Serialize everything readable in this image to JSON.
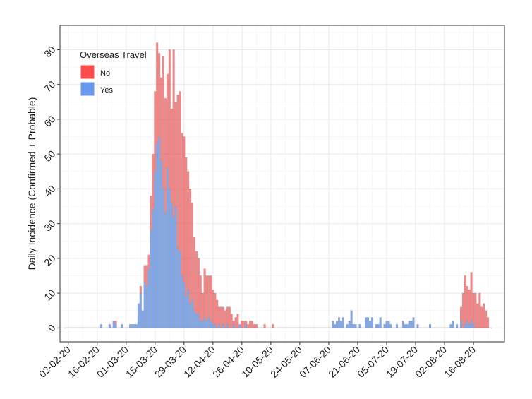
{
  "chart_data": {
    "type": "bar",
    "stacked": true,
    "title": "",
    "xlabel": "",
    "ylabel": "Daily Incidence (Confirmed + Probable)",
    "ylim": [
      -4,
      87
    ],
    "y_ticks": [
      0,
      10,
      20,
      30,
      40,
      50,
      60,
      70,
      80
    ],
    "x_start_date": "2020-01-29",
    "x_end_date": "2020-08-31",
    "x_tick_labels": [
      "02-02-20",
      "16-02-20",
      "01-03-20",
      "15-03-20",
      "29-03-20",
      "12-04-20",
      "26-04-20",
      "10-05-20",
      "24-05-20",
      "07-06-20",
      "21-06-20",
      "05-07-20",
      "19-07-20",
      "02-08-20",
      "16-08-20"
    ],
    "x_tick_dates": [
      "2020-02-02",
      "2020-02-16",
      "2020-03-01",
      "2020-03-15",
      "2020-03-29",
      "2020-04-12",
      "2020-04-26",
      "2020-05-10",
      "2020-05-24",
      "2020-06-07",
      "2020-06-21",
      "2020-07-05",
      "2020-07-19",
      "2020-08-02",
      "2020-08-16"
    ],
    "grid": true,
    "legend": {
      "title": "Overseas Travel",
      "position": "top-left"
    },
    "series": [
      {
        "name": "Yes",
        "color": "#6699ee",
        "points": [
          [
            "2020-02-18",
            1
          ],
          [
            "2020-02-22",
            1
          ],
          [
            "2020-02-24",
            2
          ],
          [
            "2020-02-25",
            1
          ],
          [
            "2020-02-28",
            1
          ],
          [
            "2020-03-03",
            1
          ],
          [
            "2020-03-04",
            1
          ],
          [
            "2020-03-05",
            1
          ],
          [
            "2020-03-06",
            1
          ],
          [
            "2020-03-07",
            7
          ],
          [
            "2020-03-08",
            10
          ],
          [
            "2020-03-09",
            5
          ],
          [
            "2020-03-10",
            13
          ],
          [
            "2020-03-11",
            12
          ],
          [
            "2020-03-12",
            17
          ],
          [
            "2020-03-13",
            28
          ],
          [
            "2020-03-14",
            34
          ],
          [
            "2020-03-15",
            45
          ],
          [
            "2020-03-16",
            53
          ],
          [
            "2020-03-17",
            55
          ],
          [
            "2020-03-18",
            48
          ],
          [
            "2020-03-19",
            40
          ],
          [
            "2020-03-20",
            33
          ],
          [
            "2020-03-21",
            46
          ],
          [
            "2020-03-22",
            40
          ],
          [
            "2020-03-23",
            36
          ],
          [
            "2020-03-24",
            32
          ],
          [
            "2020-03-25",
            35
          ],
          [
            "2020-03-26",
            23
          ],
          [
            "2020-03-27",
            22
          ],
          [
            "2020-03-28",
            15
          ],
          [
            "2020-03-29",
            13
          ],
          [
            "2020-03-30",
            9
          ],
          [
            "2020-03-31",
            11
          ],
          [
            "2020-04-01",
            7
          ],
          [
            "2020-04-02",
            8
          ],
          [
            "2020-04-03",
            5
          ],
          [
            "2020-04-04",
            4
          ],
          [
            "2020-04-05",
            4
          ],
          [
            "2020-04-06",
            2
          ],
          [
            "2020-04-07",
            2
          ],
          [
            "2020-04-08",
            3
          ],
          [
            "2020-04-09",
            2
          ],
          [
            "2020-04-10",
            3
          ],
          [
            "2020-04-11",
            2
          ],
          [
            "2020-04-12",
            1
          ],
          [
            "2020-04-13",
            1
          ],
          [
            "2020-04-15",
            1
          ],
          [
            "2020-04-17",
            1
          ],
          [
            "2020-04-19",
            1
          ],
          [
            "2020-04-22",
            1
          ],
          [
            "2020-04-25",
            1
          ],
          [
            "2020-04-28",
            1
          ],
          [
            "2020-06-09",
            2
          ],
          [
            "2020-06-10",
            1
          ],
          [
            "2020-06-11",
            2
          ],
          [
            "2020-06-12",
            3
          ],
          [
            "2020-06-13",
            2
          ],
          [
            "2020-06-14",
            3
          ],
          [
            "2020-06-16",
            1
          ],
          [
            "2020-06-17",
            2
          ],
          [
            "2020-06-18",
            5
          ],
          [
            "2020-06-19",
            1
          ],
          [
            "2020-06-20",
            1
          ],
          [
            "2020-06-22",
            1
          ],
          [
            "2020-06-25",
            3
          ],
          [
            "2020-06-26",
            3
          ],
          [
            "2020-06-27",
            2
          ],
          [
            "2020-06-28",
            3
          ],
          [
            "2020-06-30",
            1
          ],
          [
            "2020-07-01",
            1
          ],
          [
            "2020-07-02",
            3
          ],
          [
            "2020-07-04",
            1
          ],
          [
            "2020-07-05",
            2
          ],
          [
            "2020-07-06",
            2
          ],
          [
            "2020-07-07",
            1
          ],
          [
            "2020-07-10",
            1
          ],
          [
            "2020-07-13",
            2
          ],
          [
            "2020-07-14",
            1
          ],
          [
            "2020-07-15",
            1
          ],
          [
            "2020-07-16",
            2
          ],
          [
            "2020-07-17",
            2
          ],
          [
            "2020-07-18",
            3
          ],
          [
            "2020-07-20",
            1
          ],
          [
            "2020-07-26",
            1
          ],
          [
            "2020-08-05",
            1
          ],
          [
            "2020-08-06",
            2
          ],
          [
            "2020-08-08",
            1
          ],
          [
            "2020-08-10",
            2
          ],
          [
            "2020-08-12",
            1
          ],
          [
            "2020-08-13",
            2
          ],
          [
            "2020-08-14",
            1
          ],
          [
            "2020-08-15",
            2
          ],
          [
            "2020-08-16",
            1
          ]
        ]
      },
      {
        "name": "No",
        "color": "#ff4c4c",
        "points": [
          [
            "2020-02-25",
            1
          ],
          [
            "2020-03-08",
            2
          ],
          [
            "2020-03-10",
            5
          ],
          [
            "2020-03-11",
            6
          ],
          [
            "2020-03-12",
            4
          ],
          [
            "2020-03-13",
            10
          ],
          [
            "2020-03-14",
            16
          ],
          [
            "2020-03-15",
            23
          ],
          [
            "2020-03-16",
            29
          ],
          [
            "2020-03-17",
            24
          ],
          [
            "2020-03-18",
            24
          ],
          [
            "2020-03-19",
            38
          ],
          [
            "2020-03-20",
            33
          ],
          [
            "2020-03-21",
            27
          ],
          [
            "2020-03-22",
            40
          ],
          [
            "2020-03-23",
            27
          ],
          [
            "2020-03-24",
            48
          ],
          [
            "2020-03-25",
            30
          ],
          [
            "2020-03-26",
            44
          ],
          [
            "2020-03-27",
            46
          ],
          [
            "2020-03-28",
            41
          ],
          [
            "2020-03-29",
            42
          ],
          [
            "2020-03-30",
            40
          ],
          [
            "2020-03-31",
            34
          ],
          [
            "2020-04-01",
            33
          ],
          [
            "2020-04-02",
            28
          ],
          [
            "2020-04-03",
            21
          ],
          [
            "2020-04-04",
            18
          ],
          [
            "2020-04-05",
            16
          ],
          [
            "2020-04-06",
            13
          ],
          [
            "2020-04-07",
            8
          ],
          [
            "2020-04-08",
            14
          ],
          [
            "2020-04-09",
            13
          ],
          [
            "2020-04-10",
            12
          ],
          [
            "2020-04-11",
            13
          ],
          [
            "2020-04-12",
            10
          ],
          [
            "2020-04-13",
            9
          ],
          [
            "2020-04-14",
            8
          ],
          [
            "2020-04-15",
            5
          ],
          [
            "2020-04-16",
            6
          ],
          [
            "2020-04-17",
            5
          ],
          [
            "2020-04-18",
            5
          ],
          [
            "2020-04-19",
            5
          ],
          [
            "2020-04-20",
            6
          ],
          [
            "2020-04-21",
            4
          ],
          [
            "2020-04-22",
            1
          ],
          [
            "2020-04-23",
            3
          ],
          [
            "2020-04-24",
            4
          ],
          [
            "2020-04-26",
            2
          ],
          [
            "2020-04-27",
            2
          ],
          [
            "2020-04-28",
            1
          ],
          [
            "2020-04-29",
            1
          ],
          [
            "2020-04-30",
            2
          ],
          [
            "2020-05-01",
            2
          ],
          [
            "2020-05-02",
            1
          ],
          [
            "2020-05-03",
            1
          ],
          [
            "2020-05-07",
            1
          ],
          [
            "2020-05-11",
            1
          ],
          [
            "2020-08-10",
            4
          ],
          [
            "2020-08-11",
            10
          ],
          [
            "2020-08-12",
            14
          ],
          [
            "2020-08-13",
            10
          ],
          [
            "2020-08-14",
            10
          ],
          [
            "2020-08-15",
            14
          ],
          [
            "2020-08-16",
            9
          ],
          [
            "2020-08-17",
            10
          ],
          [
            "2020-08-18",
            7
          ],
          [
            "2020-08-19",
            10
          ],
          [
            "2020-08-20",
            6
          ],
          [
            "2020-08-21",
            7
          ],
          [
            "2020-08-22",
            5
          ],
          [
            "2020-08-23",
            3
          ]
        ]
      }
    ]
  }
}
